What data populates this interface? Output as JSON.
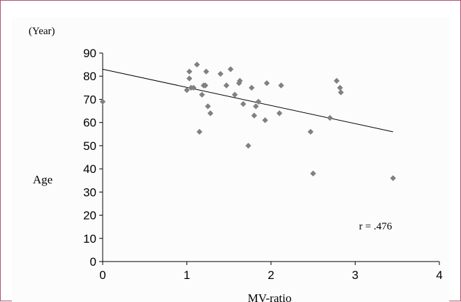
{
  "chart_data": {
    "type": "scatter",
    "unit_label": "(Year)",
    "ylabel": "Age",
    "xlabel": "MV-ratio",
    "annotation": "r = .476",
    "xlim": [
      0,
      4
    ],
    "ylim": [
      0,
      90
    ],
    "x_ticks": [
      0,
      1,
      2,
      3,
      4
    ],
    "y_ticks": [
      0,
      10,
      20,
      30,
      40,
      50,
      60,
      70,
      80,
      90
    ],
    "grid": false,
    "marker_color": "#808080",
    "trendline": {
      "x": [
        0,
        3.45
      ],
      "y": [
        83.0,
        56.0
      ]
    },
    "points": [
      {
        "x": 0.0,
        "y": 69
      },
      {
        "x": 1.0,
        "y": 74
      },
      {
        "x": 1.03,
        "y": 79
      },
      {
        "x": 1.03,
        "y": 82
      },
      {
        "x": 1.05,
        "y": 75
      },
      {
        "x": 1.08,
        "y": 75
      },
      {
        "x": 1.12,
        "y": 85
      },
      {
        "x": 1.15,
        "y": 56
      },
      {
        "x": 1.18,
        "y": 72
      },
      {
        "x": 1.2,
        "y": 76
      },
      {
        "x": 1.22,
        "y": 76
      },
      {
        "x": 1.23,
        "y": 82
      },
      {
        "x": 1.25,
        "y": 67
      },
      {
        "x": 1.28,
        "y": 64
      },
      {
        "x": 1.4,
        "y": 81
      },
      {
        "x": 1.47,
        "y": 76
      },
      {
        "x": 1.52,
        "y": 83
      },
      {
        "x": 1.57,
        "y": 72
      },
      {
        "x": 1.62,
        "y": 77
      },
      {
        "x": 1.63,
        "y": 78
      },
      {
        "x": 1.67,
        "y": 68
      },
      {
        "x": 1.73,
        "y": 50
      },
      {
        "x": 1.77,
        "y": 75
      },
      {
        "x": 1.8,
        "y": 63
      },
      {
        "x": 1.82,
        "y": 67
      },
      {
        "x": 1.85,
        "y": 69
      },
      {
        "x": 1.93,
        "y": 61
      },
      {
        "x": 1.95,
        "y": 77
      },
      {
        "x": 2.1,
        "y": 64
      },
      {
        "x": 2.12,
        "y": 76
      },
      {
        "x": 2.47,
        "y": 56
      },
      {
        "x": 2.5,
        "y": 38
      },
      {
        "x": 2.7,
        "y": 62
      },
      {
        "x": 2.78,
        "y": 78
      },
      {
        "x": 2.82,
        "y": 75
      },
      {
        "x": 2.83,
        "y": 73
      },
      {
        "x": 3.45,
        "y": 36
      }
    ]
  }
}
